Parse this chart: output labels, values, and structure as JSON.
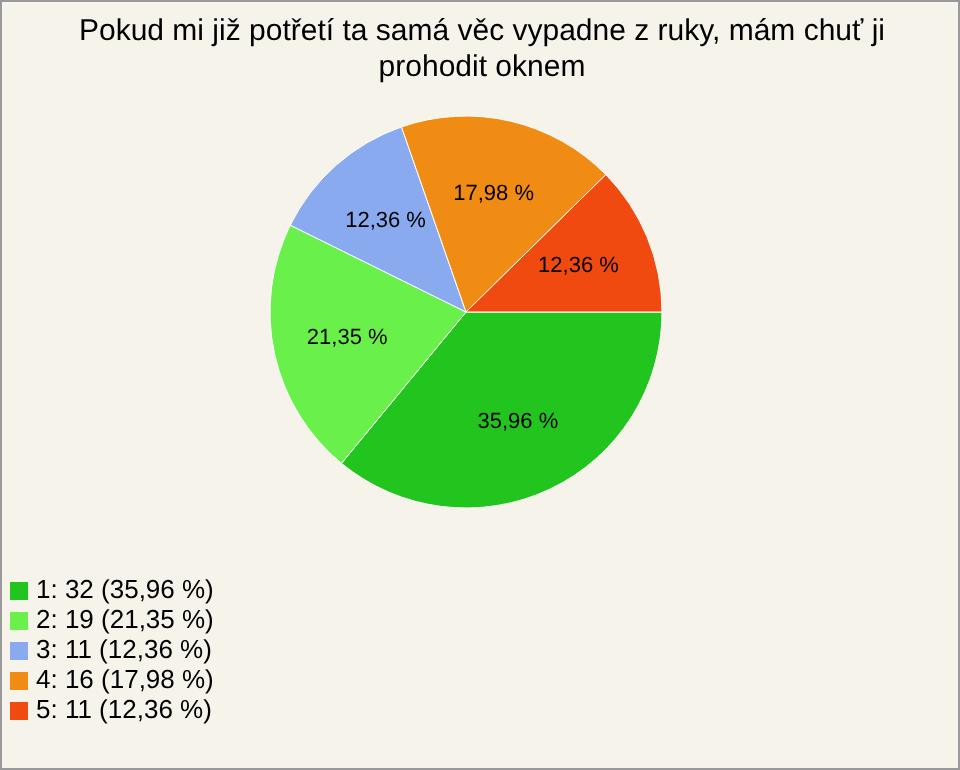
{
  "chart_data": {
    "type": "pie",
    "title": "Pokud mi již potřetí ta samá věc vypadne z ruky, mám chuť ji prohodit oknem",
    "categories": [
      "1: 32 (35,96 %)",
      "2: 19 (21,35 %)",
      "3: 11 (12,36 %)",
      "4: 16 (17,98 %)",
      "5: 11 (12,36 %)"
    ],
    "values": [
      35.96,
      21.35,
      12.36,
      17.98,
      12.36
    ],
    "value_labels": [
      "35,96 %",
      "21,35 %",
      "12,36 %",
      "17,98 %",
      "12,36 %"
    ],
    "colors": [
      "#22c41e",
      "#6af04a",
      "#8aaaf0",
      "#f08c14",
      "#f04a10"
    ],
    "legend": "bottom left"
  }
}
